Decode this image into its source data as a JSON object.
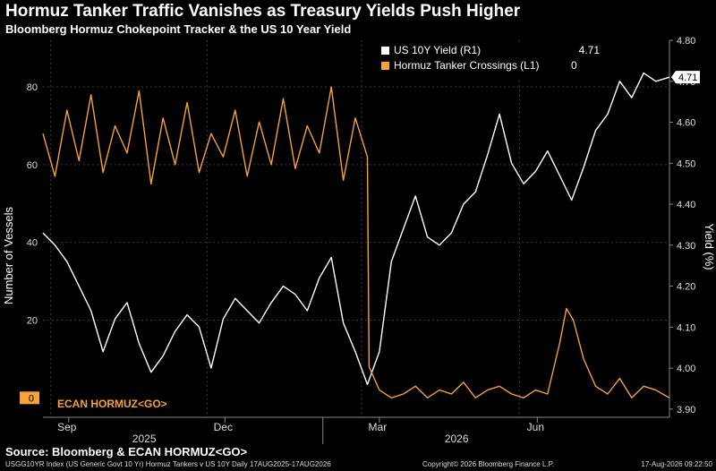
{
  "header": {
    "title": "Hormuz Tanker Traffic Vanishes as Treasury Yields Push Higher",
    "subtitle": "Bloomberg Hormuz Chokepoint Tracker & the US 10 Year Yield"
  },
  "footer": {
    "source": "Source: Bloomberg & ECAN HORMUZ<GO>",
    "left_note": "USGG10YR Index (US Generic Govt 10 Yr) Hormuz Tankers v US 10Y Daily 17AUG2025-17AUG2026",
    "copyright": "Copyright© 2026 Bloomberg Finance L.P.",
    "timestamp": "17-Aug-2026 09:22:50"
  },
  "colors": {
    "background": "#000000",
    "yield_line": "#ffffff",
    "tanker_line": "#f5a23a",
    "grid": "#3a3a3a"
  },
  "chart_data": {
    "type": "line",
    "dual_axis": true,
    "ylabel_left": "Number of Vessels",
    "ylabel_right": "Yield (%)",
    "ylim_left": [
      -5,
      92
    ],
    "ylim_right": [
      3.88,
      4.8
    ],
    "yticks_left": [
      "80",
      "60",
      "40",
      "20",
      "0"
    ],
    "yticks_right": [
      "4.80",
      "4.70",
      "4.60",
      "4.50",
      "4.40",
      "4.30",
      "4.20",
      "4.10",
      "4.00",
      "3.90"
    ],
    "yticks_left_values": [
      80,
      60,
      40,
      20,
      0
    ],
    "yticks_right_values": [
      4.8,
      4.7,
      4.6,
      4.5,
      4.4,
      4.3,
      4.2,
      4.1,
      4.0,
      3.9
    ],
    "x_month_labels": [
      "Sep",
      "Dec",
      "Mar",
      "Jun"
    ],
    "x_month_values": [
      "2025-09-01",
      "2025-12-01",
      "2026-03-01",
      "2026-06-01"
    ],
    "x_year_labels": [
      "2025",
      "2026"
    ],
    "x_year_values": [
      "2025-10-15",
      "2026-04-15"
    ],
    "xlim": [
      "2025-08-17",
      "2026-08-17"
    ],
    "grid": true,
    "legend_position": "top-right",
    "annotation": "ECAN HORMUZ<GO>",
    "series": [
      {
        "name": "US 10Y Yield (R1)",
        "last_value": "4.71",
        "last_tag": "4.71",
        "axis": "right",
        "x": [
          "2025-08-17",
          "2025-08-24",
          "2025-08-31",
          "2025-09-07",
          "2025-09-14",
          "2025-09-21",
          "2025-09-28",
          "2025-10-05",
          "2025-10-12",
          "2025-10-19",
          "2025-10-26",
          "2025-11-02",
          "2025-11-09",
          "2025-11-16",
          "2025-11-23",
          "2025-11-30",
          "2025-12-07",
          "2025-12-14",
          "2025-12-21",
          "2025-12-28",
          "2026-01-04",
          "2026-01-11",
          "2026-01-18",
          "2026-01-25",
          "2026-02-01",
          "2026-02-08",
          "2026-02-15",
          "2026-02-22",
          "2026-03-01",
          "2026-03-08",
          "2026-03-15",
          "2026-03-22",
          "2026-03-29",
          "2026-04-05",
          "2026-04-12",
          "2026-04-19",
          "2026-04-26",
          "2026-05-03",
          "2026-05-10",
          "2026-05-17",
          "2026-05-24",
          "2026-05-31",
          "2026-06-07",
          "2026-06-14",
          "2026-06-21",
          "2026-06-28",
          "2026-07-05",
          "2026-07-12",
          "2026-07-19",
          "2026-07-26",
          "2026-08-02",
          "2026-08-09",
          "2026-08-17"
        ],
        "values": [
          4.33,
          4.3,
          4.26,
          4.2,
          4.14,
          4.04,
          4.12,
          4.16,
          4.06,
          3.99,
          4.03,
          4.09,
          4.13,
          4.1,
          4.0,
          4.12,
          4.17,
          4.14,
          4.11,
          4.16,
          4.2,
          4.18,
          4.14,
          4.22,
          4.27,
          4.11,
          4.04,
          3.96,
          4.04,
          4.26,
          4.34,
          4.42,
          4.32,
          4.3,
          4.33,
          4.4,
          4.43,
          4.52,
          4.62,
          4.5,
          4.45,
          4.48,
          4.53,
          4.47,
          4.41,
          4.49,
          4.58,
          4.62,
          4.7,
          4.66,
          4.72,
          4.7,
          4.71
        ]
      },
      {
        "name": "Hormuz Tanker Crossings (L1)",
        "last_value": "0",
        "last_tag": "0",
        "axis": "left",
        "x": [
          "2025-08-17",
          "2025-08-24",
          "2025-08-31",
          "2025-09-07",
          "2025-09-14",
          "2025-09-21",
          "2025-09-28",
          "2025-10-05",
          "2025-10-12",
          "2025-10-19",
          "2025-10-26",
          "2025-11-02",
          "2025-11-09",
          "2025-11-16",
          "2025-11-23",
          "2025-11-30",
          "2025-12-07",
          "2025-12-14",
          "2025-12-21",
          "2025-12-28",
          "2026-01-04",
          "2026-01-11",
          "2026-01-18",
          "2026-01-25",
          "2026-02-01",
          "2026-02-08",
          "2026-02-15",
          "2026-02-22",
          "2026-02-23",
          "2026-03-01",
          "2026-03-08",
          "2026-03-15",
          "2026-03-22",
          "2026-03-29",
          "2026-04-05",
          "2026-04-12",
          "2026-04-19",
          "2026-04-26",
          "2026-05-03",
          "2026-05-10",
          "2026-05-17",
          "2026-05-24",
          "2026-05-31",
          "2026-06-07",
          "2026-06-14",
          "2026-06-18",
          "2026-06-22",
          "2026-06-28",
          "2026-07-05",
          "2026-07-12",
          "2026-07-19",
          "2026-07-26",
          "2026-08-02",
          "2026-08-09",
          "2026-08-17"
        ],
        "values": [
          68,
          57,
          74,
          61,
          78,
          58,
          70,
          63,
          79,
          55,
          72,
          60,
          76,
          58,
          68,
          62,
          74,
          57,
          71,
          60,
          77,
          59,
          70,
          63,
          80,
          56,
          72,
          62,
          8,
          2,
          0,
          1,
          3,
          0,
          2,
          1,
          4,
          0,
          2,
          3,
          1,
          0,
          2,
          1,
          14,
          23,
          20,
          10,
          3,
          1,
          5,
          0,
          3,
          2,
          0
        ]
      }
    ]
  }
}
